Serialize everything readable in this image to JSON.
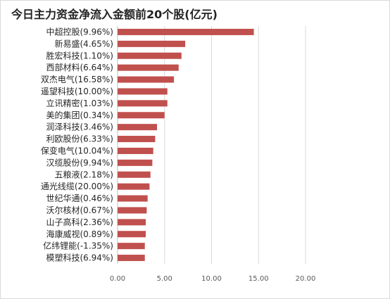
{
  "chart_data": {
    "type": "bar",
    "orientation": "horizontal",
    "title": "今日主力资金净流入金额前20个股(亿元)",
    "categories": [
      "中超控股(9.96%)",
      "新易盛(4.65%)",
      "胜宏科技(1.10%)",
      "西部材料(6.64%)",
      "双杰电气(16.58%)",
      "遥望科技(10.00%)",
      "立讯精密(1.03%)",
      "美的集团(0.34%)",
      "润泽科技(3.46%)",
      "利欧股份(6.33%)",
      "保变电气(10.04%)",
      "汉缆股份(9.94%)",
      "五粮液(2.18%)",
      "通光线缆(20.00%)",
      "世纪华通(0.46%)",
      "沃尔核材(0.67%)",
      "山子高科(2.36%)",
      "海康威视(0.89%)",
      "亿纬锂能(-1.35%)",
      "模塑科技(6.94%)"
    ],
    "values": [
      14.5,
      7.2,
      6.8,
      6.5,
      6.0,
      5.3,
      5.3,
      5.0,
      4.2,
      4.0,
      3.8,
      3.7,
      3.5,
      3.4,
      3.2,
      3.1,
      3.0,
      3.0,
      2.9,
      2.9
    ],
    "xlim": [
      0,
      20
    ],
    "xticks": [
      "0.00",
      "5.00",
      "10.00",
      "15.00",
      "20.00"
    ],
    "grid": true,
    "bar_color": "#c0504d"
  }
}
